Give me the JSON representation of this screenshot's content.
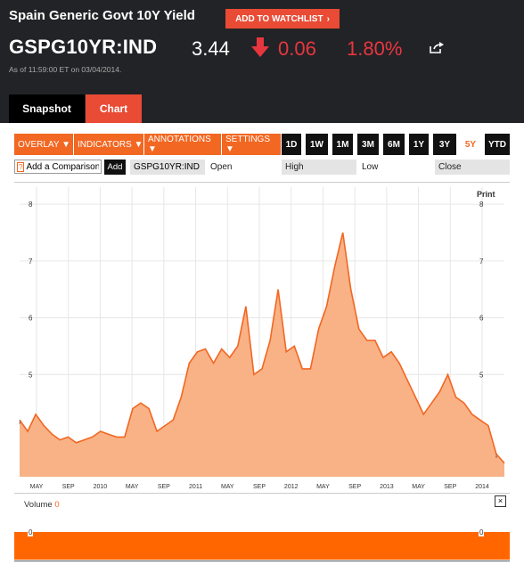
{
  "header": {
    "title": "Spain Generic Govt 10Y Yield",
    "watchlist_label": "ADD TO WATCHLIST",
    "ticker": "GSPG10YR:IND",
    "price": "3.44",
    "change": "0.06",
    "change_pct": "1.80%",
    "as_of": "As of 11:59:00 ET on 03/04/2014."
  },
  "tabs": {
    "snapshot": "Snapshot",
    "chart": "Chart"
  },
  "toolbar": {
    "menus": [
      "OVERLAY ▼",
      "INDICATORS ▼",
      "ANNOTATIONS ▼",
      "SETTINGS ▼"
    ],
    "ranges": [
      "1D",
      "1W",
      "1M",
      "3M",
      "6M",
      "1Y",
      "3Y",
      "5Y",
      "YTD"
    ],
    "active_range": "5Y"
  },
  "compare": {
    "placeholder": "Add a Comparison",
    "add_label": "Add",
    "symbol": "GSPG10YR:IND",
    "open": "Open",
    "high": "High",
    "low": "Low",
    "close": "Close"
  },
  "chart": {
    "print_label": "Print",
    "colors": {
      "line": "#f26722",
      "fill": "#f8b286"
    }
  },
  "chart_data": {
    "type": "area",
    "x_tick_labels": [
      "MAY",
      "SEP",
      "2010",
      "MAY",
      "SEP",
      "2011",
      "MAY",
      "SEP",
      "2012",
      "MAY",
      "SEP",
      "2013",
      "MAY",
      "SEP",
      "2014"
    ],
    "y_ticks": [
      5,
      6,
      7,
      8
    ],
    "ylim": [
      3.2,
      8.3
    ],
    "grid": true,
    "x": [
      "2009-03",
      "2009-04",
      "2009-05",
      "2009-06",
      "2009-07",
      "2009-08",
      "2009-09",
      "2009-10",
      "2009-11",
      "2009-12",
      "2010-01",
      "2010-02",
      "2010-03",
      "2010-04",
      "2010-05",
      "2010-06",
      "2010-07",
      "2010-08",
      "2010-09",
      "2010-10",
      "2010-11",
      "2010-12",
      "2011-01",
      "2011-02",
      "2011-03",
      "2011-04",
      "2011-05",
      "2011-06",
      "2011-07",
      "2011-08",
      "2011-09",
      "2011-10",
      "2011-11",
      "2011-12",
      "2012-01",
      "2012-02",
      "2012-03",
      "2012-04",
      "2012-05",
      "2012-06",
      "2012-07",
      "2012-08",
      "2012-09",
      "2012-10",
      "2012-11",
      "2012-12",
      "2013-01",
      "2013-02",
      "2013-03",
      "2013-04",
      "2013-05",
      "2013-06",
      "2013-07",
      "2013-08",
      "2013-09",
      "2013-10",
      "2013-11",
      "2013-12",
      "2014-01",
      "2014-02",
      "2014-03"
    ],
    "values": [
      4.2,
      4.0,
      4.3,
      4.1,
      3.95,
      3.85,
      3.9,
      3.8,
      3.85,
      3.9,
      4.0,
      3.95,
      3.9,
      3.9,
      4.4,
      4.5,
      4.4,
      4.0,
      4.1,
      4.2,
      4.6,
      5.2,
      5.4,
      5.45,
      5.2,
      5.45,
      5.3,
      5.5,
      6.2,
      5.0,
      5.1,
      5.6,
      6.5,
      5.4,
      5.5,
      5.1,
      5.1,
      5.8,
      6.2,
      6.9,
      7.5,
      6.5,
      5.8,
      5.6,
      5.6,
      5.3,
      5.4,
      5.2,
      4.9,
      4.6,
      4.3,
      4.5,
      4.7,
      5.0,
      4.6,
      4.5,
      4.3,
      4.2,
      4.1,
      3.6,
      3.44
    ],
    "markers": [
      {
        "x": "2009-03",
        "text": "↓"
      },
      {
        "x": "2014-02",
        "text": "↓"
      }
    ]
  },
  "volume": {
    "label": "Volume",
    "value": "0",
    "close_label": "×",
    "tick_left": "0",
    "tick_right": "0"
  }
}
